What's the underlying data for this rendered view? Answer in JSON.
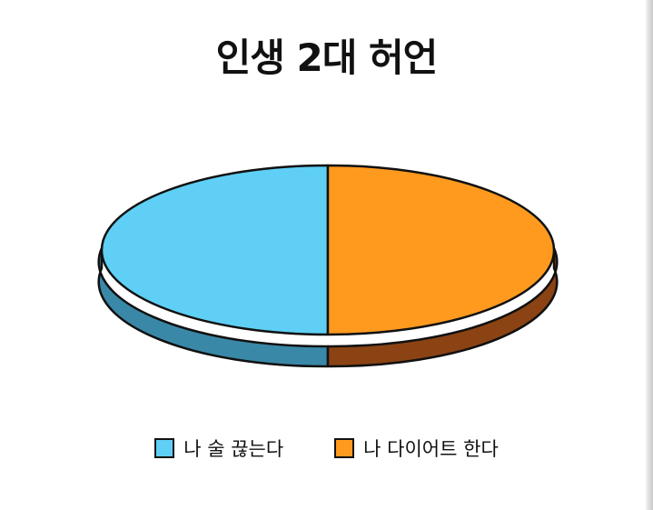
{
  "chart_data": {
    "type": "pie",
    "title": "인생 2대 허언",
    "series": [
      {
        "name": "나 술 끊는다",
        "value": 50,
        "color": "#5fcff5",
        "side_color": "#3a88a8"
      },
      {
        "name": "나 다이어트 한다",
        "value": 50,
        "color": "#ff9a1f",
        "side_color": "#8b4314"
      }
    ],
    "legend_position": "bottom"
  }
}
